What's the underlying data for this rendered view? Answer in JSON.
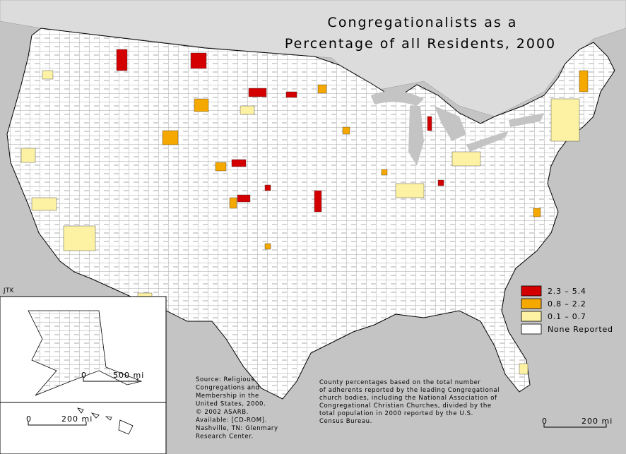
{
  "title": [
    "Congregationalists as a",
    "Percentage of all Residents, 2000"
  ],
  "legend": [
    {
      "label": "2.3 – 5.4",
      "color": "#d40000"
    },
    {
      "label": "0.8 – 2.2",
      "color": "#f5a800"
    },
    {
      "label": "0.1 – 0.7",
      "color": "#fdf2a4"
    },
    {
      "label": "None Reported",
      "color": "#ffffff"
    }
  ],
  "credit": "JTK",
  "source": [
    "Source:  Religious",
    "Congregations and",
    "Membership in the",
    "United States, 2000.",
    "© 2002 ASARB.",
    "Available: [CD-ROM].",
    "Nashville, TN: Glenmary",
    "Research Center."
  ],
  "note": [
    "County percentages based on the total number",
    "of adherents reported by the leading Congregational",
    "church bodies, including the National Association of",
    "Congregational Christian Churches, divided by the",
    "total population in 2000 reported by the U.S.",
    "Census Bureau."
  ],
  "scale_bars": [
    {
      "start": "0",
      "end": "500 mi"
    },
    {
      "start": "0",
      "end": "200 mi"
    },
    {
      "start": "0",
      "end": "200 mi"
    }
  ]
}
